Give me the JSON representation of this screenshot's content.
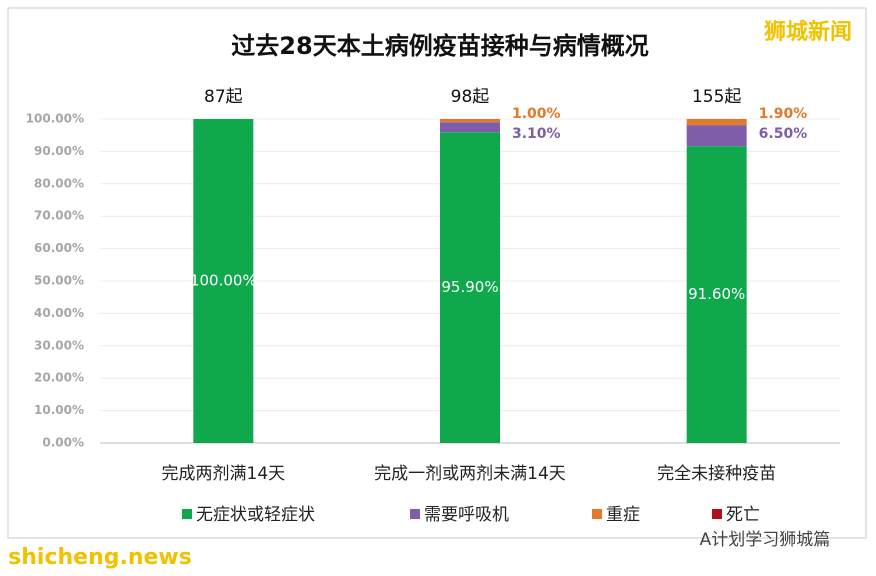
{
  "chart_data": {
    "type": "stacked_bar",
    "title": "过去28天本土病例疫苗接种与病情概况",
    "categories": [
      "完成两剂满14天",
      "完成一剂或两剂未满14天",
      "完全未接种疫苗"
    ],
    "total_labels": [
      "87起",
      "98起",
      "155起"
    ],
    "series": [
      {
        "name": "无症状或轻症状",
        "color": "#10a84c",
        "values": [
          100,
          95.9,
          91.6
        ],
        "value_labels": [
          "100.00%",
          "95.90%",
          "91.60%"
        ]
      },
      {
        "name": "需要呼吸机",
        "color": "#7e5ea8",
        "values": [
          0,
          3.1,
          6.5
        ],
        "value_labels": [
          null,
          "3.10%",
          "6.50%"
        ]
      },
      {
        "name": "重症",
        "color": "#e3792b",
        "values": [
          0,
          1.0,
          1.9
        ],
        "value_labels": [
          null,
          "1.00%",
          "1.90%"
        ]
      },
      {
        "name": "死亡",
        "color": "#b0101a",
        "values": [
          0,
          0,
          0
        ],
        "value_labels": [
          null,
          null,
          null
        ]
      }
    ],
    "ylim": [
      0,
      100
    ],
    "yticks": [
      {
        "value": 0,
        "label": "0.00%"
      },
      {
        "value": 10,
        "label": "10.00%"
      },
      {
        "value": 20,
        "label": "20.00%"
      },
      {
        "value": 30,
        "label": "30.00%"
      },
      {
        "value": 40,
        "label": "40.00%"
      },
      {
        "value": 50,
        "label": "50.00%"
      },
      {
        "value": 60,
        "label": "60.00%"
      },
      {
        "value": 70,
        "label": "70.00%"
      },
      {
        "value": 80,
        "label": "80.00%"
      },
      {
        "value": 90,
        "label": "90.00%"
      },
      {
        "value": 100,
        "label": "100.00%"
      }
    ],
    "grid": true,
    "legend": "bottom",
    "watermarks": [
      "狮城新闻",
      "shicheng.news",
      "A计划学习狮城篇"
    ]
  }
}
